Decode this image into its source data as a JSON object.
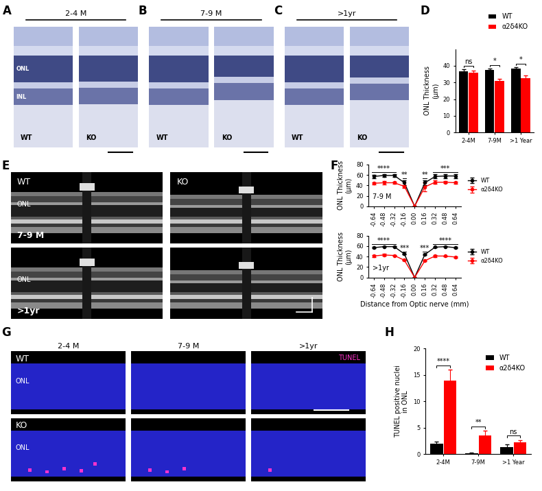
{
  "panels": [
    {
      "letter": "A",
      "header": "2-4 M",
      "sections": [
        "WT",
        "KO"
      ],
      "layers": [
        "ONL",
        "INL"
      ]
    },
    {
      "letter": "B",
      "header": "7-9 M",
      "sections": [
        "WT",
        "KO"
      ]
    },
    {
      "letter": "C",
      "header": ">1yr",
      "sections": [
        "WT",
        "KO"
      ]
    },
    {
      "letter": "E",
      "columns": [
        "WT",
        "KO"
      ],
      "rows": [
        "7-9 M",
        ">1yr"
      ],
      "layer": "ONL"
    },
    {
      "letter": "G",
      "rows": [
        "WT",
        "KO"
      ],
      "columns": [
        "2-4 M",
        "7-9 M",
        ">1yr"
      ],
      "stain": "TUNEL",
      "layer": "ONL"
    }
  ],
  "chart_data": [
    {
      "letter": "D",
      "type": "bar",
      "categories": [
        "2-4M",
        "7-9M",
        ">1 Year"
      ],
      "ylabel": "ONL Thickness\n(µm)",
      "ylim": [
        0,
        50
      ],
      "yticks": [
        0,
        10,
        20,
        30,
        40
      ],
      "legend": "upper right",
      "series": [
        {
          "name": "WT",
          "color": "#000000",
          "values": [
            36.5,
            37.5,
            38.5
          ],
          "errors": [
            1.5,
            1.0,
            0.8
          ]
        },
        {
          "name": "α2δ4KO",
          "color": "#ff0000",
          "values": [
            36.0,
            31.0,
            32.5
          ],
          "errors": [
            1.0,
            1.2,
            1.8
          ]
        }
      ],
      "significance": [
        "ns",
        "*",
        "*"
      ]
    },
    {
      "letter": "F",
      "type": "line",
      "x": [
        -0.64,
        -0.48,
        -0.32,
        -0.16,
        0,
        0.16,
        0.32,
        0.48,
        0.64
      ],
      "xlim": [
        -0.72,
        0.72
      ],
      "xticks": [
        -0.64,
        -0.48,
        -0.32,
        -0.16,
        {
          "value": 0,
          "label": "0.00"
        },
        0.16,
        0.32,
        0.48,
        0.64
      ],
      "ylim": [
        0,
        80
      ],
      "yticks": [
        0,
        20,
        40,
        60,
        80
      ],
      "ylabel": "ONL Thickness\n(µm)",
      "annotation": "7-9 M",
      "legend": "center left",
      "series": [
        {
          "name": "WT",
          "color": "#000000",
          "marker": "o",
          "values": [
            57,
            59,
            59,
            45,
            0,
            45,
            57,
            58,
            58
          ],
          "errors": [
            3,
            3,
            3,
            4,
            0,
            4,
            4,
            4,
            4
          ]
        },
        {
          "name": "α2δ4KO",
          "color": "#ff0000",
          "marker": "o",
          "values": [
            44,
            45,
            45,
            38,
            0,
            37,
            46,
            46,
            45
          ],
          "errors": [
            2,
            3,
            2,
            3,
            0,
            8,
            3,
            2,
            2
          ]
        }
      ],
      "significance": [
        {
          "from": -0.64,
          "to": -0.32,
          "label": "****"
        },
        {
          "from": -0.16,
          "to": -0.16,
          "label": "**"
        },
        {
          "from": 0.16,
          "to": 0.16,
          "label": "**"
        },
        {
          "from": 0.32,
          "to": 0.64,
          "label": "***"
        }
      ]
    },
    {
      "type": "line",
      "x": [
        -0.64,
        -0.48,
        -0.32,
        -0.16,
        0,
        0.16,
        0.32,
        0.48,
        0.64
      ],
      "xlim": [
        -0.72,
        0.72
      ],
      "xticks": [
        -0.64,
        -0.48,
        -0.32,
        -0.16,
        {
          "value": 0,
          "label": "0.00"
        },
        0.16,
        0.32,
        0.48,
        0.64
      ],
      "ylim": [
        0,
        80
      ],
      "yticks": [
        0,
        20,
        40,
        60,
        80
      ],
      "ylabel": "ONL Thickness\n(µm)",
      "xlabel": "Distance from Optic nerve (mm)",
      "annotation": ">1yr",
      "legend": "center left",
      "series": [
        {
          "name": "WT",
          "color": "#000000",
          "marker": "o",
          "values": [
            57,
            59,
            59,
            45,
            0,
            44,
            58,
            59,
            57
          ],
          "errors": [
            1,
            1,
            1,
            1,
            0,
            1,
            1,
            1,
            1
          ]
        },
        {
          "name": "α2δ4KO",
          "color": "#ff0000",
          "marker": "o",
          "values": [
            41,
            43,
            42,
            33,
            0,
            32,
            41,
            41,
            39
          ],
          "errors": [
            2,
            2,
            1,
            1,
            0,
            1,
            2,
            1,
            1
          ]
        }
      ],
      "significance": [
        {
          "from": -0.64,
          "to": -0.32,
          "label": "****"
        },
        {
          "from": -0.16,
          "to": -0.16,
          "label": "***"
        },
        {
          "from": 0.16,
          "to": 0.16,
          "label": "***"
        },
        {
          "from": 0.32,
          "to": 0.64,
          "label": "****"
        }
      ]
    },
    {
      "letter": "H",
      "type": "bar",
      "categories": [
        "2-4M",
        "7-9M",
        ">1 Year"
      ],
      "ylabel": "TUNEL positive nuclei\nin ONL",
      "ylim": [
        0,
        20
      ],
      "yticks": [
        0,
        5,
        10,
        15,
        20
      ],
      "legend": "upper right",
      "series": [
        {
          "name": "WT",
          "color": "#000000",
          "values": [
            2.0,
            0.2,
            1.3
          ],
          "errors": [
            0.4,
            0.1,
            0.5
          ]
        },
        {
          "name": "α2δ4KO",
          "color": "#ff0000",
          "values": [
            14.0,
            3.5,
            2.2
          ],
          "errors": [
            2.0,
            1.0,
            0.5
          ]
        }
      ],
      "significance": [
        "****",
        "**",
        "ns"
      ]
    }
  ]
}
